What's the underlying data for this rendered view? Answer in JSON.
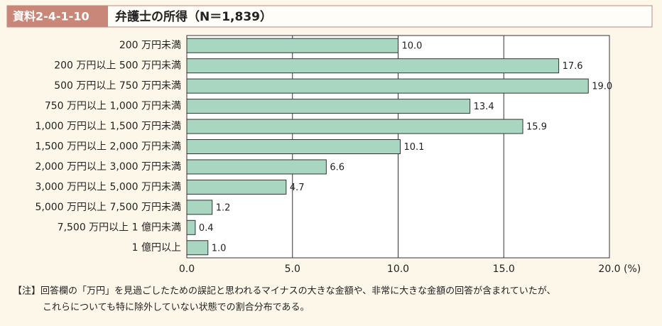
{
  "chart_data": {
    "type": "hbar",
    "label": "資料2-4-1-10",
    "title": "弁護士の所得（N＝1,839）",
    "categories": [
      "200 万円未満",
      "200 万円以上 500 万円未満",
      "500 万円以上 750 万円未満",
      "750 万円以上 1,000 万円未満",
      "1,000 万円以上 1,500 万円未満",
      "1,500 万円以上 2,000 万円未満",
      "2,000 万円以上 3,000 万円未満",
      "3,000 万円以上 5,000 万円未満",
      "5,000 万円以上 7,500 万円未満",
      "7,500 万円以上 1 億円未満",
      "1 億円以上"
    ],
    "values": [
      10.0,
      17.6,
      19.0,
      13.4,
      15.9,
      10.1,
      6.6,
      4.7,
      1.2,
      0.4,
      1.0
    ],
    "value_labels": [
      "10.0",
      "17.6",
      "19.0",
      "13.4",
      "15.9",
      "10.1",
      "6.6",
      "4.7",
      "1.2",
      "0.4",
      "1.0"
    ],
    "color": "#a9d6c1",
    "xlim": [
      0,
      20
    ],
    "xticks": [
      {
        "value": 0,
        "label": "0.0"
      },
      {
        "value": 5,
        "label": "5.0"
      },
      {
        "value": 10,
        "label": "10.0"
      },
      {
        "value": 15,
        "label": "15.0"
      },
      {
        "value": 20,
        "label": "20.0"
      }
    ],
    "x_unit": "(%)",
    "grid": true,
    "note": [
      "【注】回答欄の「万円」を見過ごしたための誤記と思われるマイナスの大きな金額や、非常に大きな金額の回答が含まれていたが、",
      "これらについても特に除外していない状態での割合分布である。"
    ]
  }
}
